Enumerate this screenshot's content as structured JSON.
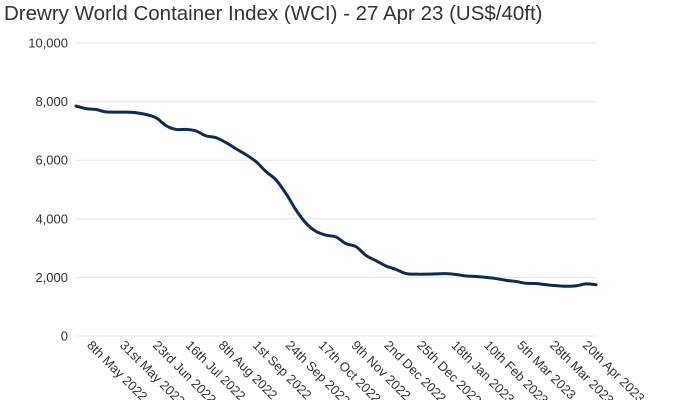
{
  "chart_data": {
    "type": "line",
    "title": "Drewry World Container Index (WCI) - 27 Apr 23 (US$/40ft)",
    "xlabel": "",
    "ylabel": "",
    "ylim": [
      0,
      10000
    ],
    "y_ticks": [
      "0",
      "2,000",
      "4,000",
      "6,000",
      "8,000",
      "10,000"
    ],
    "y_tick_values": [
      0,
      2000,
      4000,
      6000,
      8000,
      10000
    ],
    "x_tick_labels": [
      "8th May 2022",
      "31st May 2022",
      "23rd Jun 2022",
      "16th Jul 2022",
      "8th Aug 2022",
      "1st Sep 2022",
      "24th Sep 2022",
      "17th Oct 2022",
      "9th Nov 2022",
      "2nd Dec 2022",
      "25th Dec 2022",
      "18th Jan 2023",
      "10th Feb 2023",
      "5th Mar 2023",
      "28th Mar 2023",
      "20th Apr 2023"
    ],
    "x_tick_dates": [
      "2022-05-08",
      "2022-05-31",
      "2022-06-23",
      "2022-07-16",
      "2022-08-08",
      "2022-09-01",
      "2022-09-24",
      "2022-10-17",
      "2022-11-09",
      "2022-12-02",
      "2022-12-25",
      "2023-01-18",
      "2023-02-10",
      "2023-03-05",
      "2023-03-28",
      "2023-04-20"
    ],
    "x_range": [
      "2022-04-28",
      "2023-04-27"
    ],
    "grid": true,
    "line_color": "#0e2c52",
    "series": [
      {
        "x": [
          "2022-04-28",
          "2022-05-05",
          "2022-05-12",
          "2022-05-19",
          "2022-05-26",
          "2022-06-02",
          "2022-06-09",
          "2022-06-16",
          "2022-06-23",
          "2022-06-30",
          "2022-07-07",
          "2022-07-14",
          "2022-07-21",
          "2022-07-28",
          "2022-08-04",
          "2022-08-11",
          "2022-08-18",
          "2022-08-25",
          "2022-09-01",
          "2022-09-08",
          "2022-09-15",
          "2022-09-22",
          "2022-09-29",
          "2022-10-06",
          "2022-10-13",
          "2022-10-20",
          "2022-10-27",
          "2022-11-03",
          "2022-11-10",
          "2022-11-17",
          "2022-11-24",
          "2022-12-01",
          "2022-12-08",
          "2022-12-15",
          "2022-12-22",
          "2022-12-29",
          "2023-01-05",
          "2023-01-12",
          "2023-01-19",
          "2023-01-26",
          "2023-02-02",
          "2023-02-09",
          "2023-02-16",
          "2023-02-23",
          "2023-03-02",
          "2023-03-09",
          "2023-03-16",
          "2023-03-23",
          "2023-03-30",
          "2023-04-06",
          "2023-04-13",
          "2023-04-20",
          "2023-04-27"
        ],
        "values": [
          7850,
          7760,
          7730,
          7650,
          7640,
          7640,
          7620,
          7560,
          7450,
          7180,
          7050,
          7050,
          7000,
          6830,
          6770,
          6600,
          6390,
          6190,
          5950,
          5610,
          5330,
          4860,
          4300,
          3850,
          3570,
          3440,
          3380,
          3150,
          3050,
          2750,
          2570,
          2390,
          2270,
          2130,
          2110,
          2110,
          2120,
          2130,
          2100,
          2050,
          2030,
          2000,
          1960,
          1900,
          1860,
          1800,
          1790,
          1750,
          1720,
          1700,
          1710,
          1780,
          1750
        ]
      }
    ]
  }
}
